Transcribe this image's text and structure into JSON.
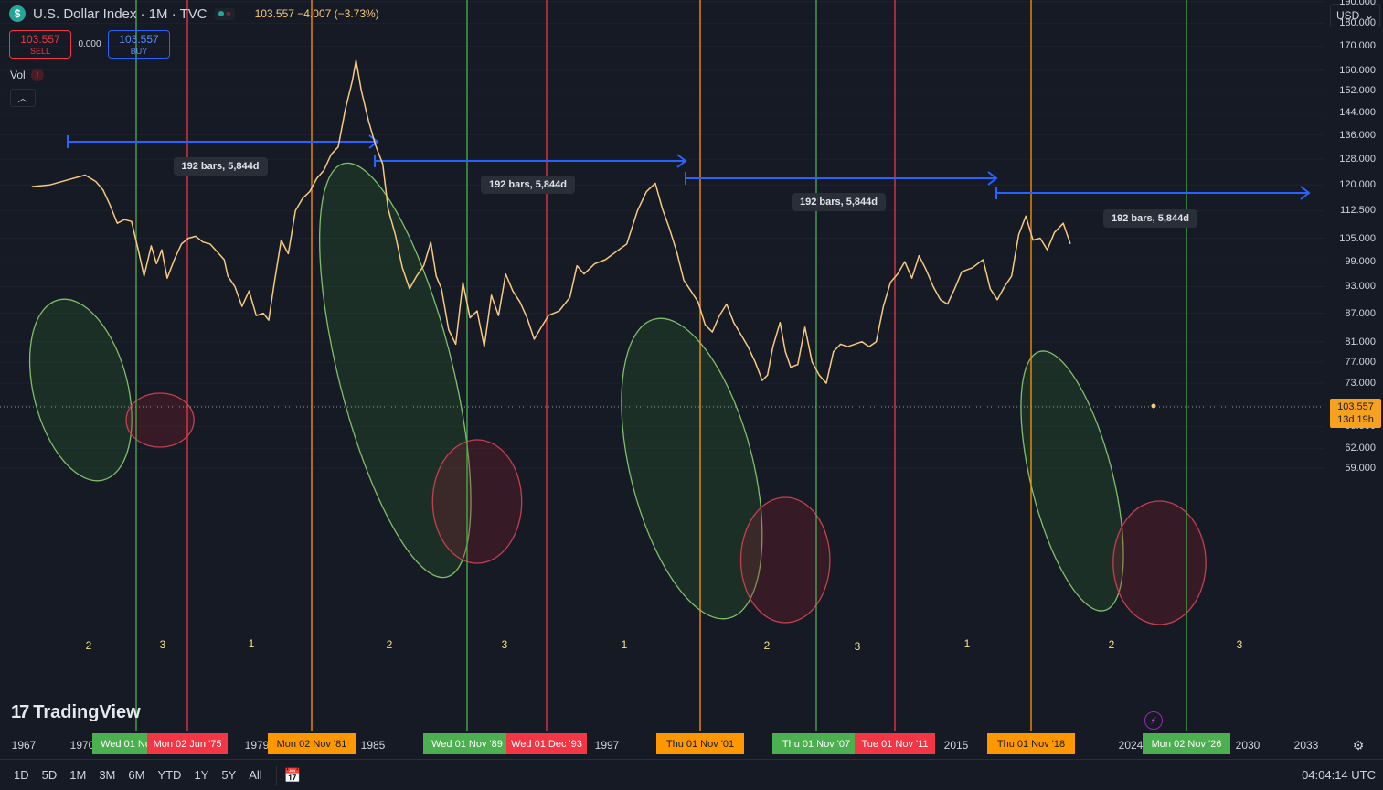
{
  "header": {
    "symbol_icon": "dollar-sign-icon",
    "title": "U.S. Dollar Index · 1M · TVC",
    "quote": "103.557  −4.007 (−3.73%)"
  },
  "trade": {
    "sell_price": "103.557",
    "sell_label": "SELL",
    "spread": "0.000",
    "buy_price": "103.557",
    "buy_label": "BUY"
  },
  "volume_label": "Vol",
  "currency": "USD",
  "last_price": {
    "value": "103.557",
    "countdown": "13d 19h"
  },
  "timeframes": [
    "1D",
    "5D",
    "1M",
    "3M",
    "6M",
    "YTD",
    "1Y",
    "5Y",
    "All"
  ],
  "clock": "04:04:14 UTC",
  "brand": "TradingView",
  "colors": {
    "background": "#161a25",
    "price_line": "#f7c97f",
    "green_line": "#4caf50",
    "red_line": "#f23645",
    "orange_line": "#ff9800",
    "measure_arrow": "#2962ff",
    "green_ellipse": "#2e7d32",
    "red_ellipse": "#8b1e2b"
  },
  "chart_data": {
    "type": "line",
    "title": "U.S. Dollar Index · 1M · TVC",
    "scale": "log",
    "ylim": [
      57,
      200
    ],
    "xlim": [
      1966,
      2035
    ],
    "y_ticks": [
      "190.000",
      "180.000",
      "170.000",
      "160.000",
      "152.000",
      "144.000",
      "136.000",
      "128.000",
      "120.000",
      "112.500",
      "105.000",
      "99.000",
      "93.000",
      "87.000",
      "81.000",
      "77.000",
      "73.000",
      "69.000",
      "65.500",
      "62.000",
      "59.000"
    ],
    "x_ticks": [
      "1967",
      "1970",
      "1979",
      "1985",
      "1997",
      "2015",
      "2024",
      "2030",
      "2033"
    ],
    "series": [
      {
        "x": [
          1967.0,
          1968.0,
          1969.0,
          1970.0,
          1970.6,
          1971.0,
          1971.4,
          1971.8,
          1972.2,
          1972.6,
          1973.0,
          1973.3,
          1973.7,
          1974.0,
          1974.3,
          1974.6,
          1975.0,
          1975.4,
          1975.8,
          1976.2,
          1976.6,
          1977.0,
          1977.4,
          1977.8,
          1978.0,
          1978.4,
          1978.8,
          1979.2,
          1979.6,
          1980.0,
          1980.3,
          1980.6,
          1981.0,
          1981.4,
          1981.8,
          1982.2,
          1982.6,
          1983.0,
          1983.4,
          1983.8,
          1984.2,
          1984.6,
          1985.0,
          1985.2,
          1985.5,
          1985.9,
          1986.3,
          1986.7,
          1987.0,
          1987.4,
          1987.8,
          1988.2,
          1988.6,
          1989.0,
          1989.4,
          1989.7,
          1990.0,
          1990.4,
          1990.8,
          1991.2,
          1991.6,
          1992.0,
          1992.4,
          1992.8,
          1993.2,
          1993.6,
          1994.0,
          1994.4,
          1994.8,
          1995.2,
          1995.6,
          1996.0,
          1996.6,
          1997.2,
          1997.6,
          1998.0,
          1998.6,
          1999.2,
          1999.8,
          2000.4,
          2001.0,
          2001.5,
          2002.0,
          2002.4,
          2002.8,
          2003.2,
          2003.6,
          2004.0,
          2004.4,
          2004.8,
          2005.2,
          2005.6,
          2006.0,
          2006.4,
          2006.8,
          2007.2,
          2007.6,
          2008.0,
          2008.3,
          2008.6,
          2009.0,
          2009.3,
          2009.6,
          2010.0,
          2010.4,
          2010.8,
          2011.2,
          2011.6,
          2012.0,
          2012.4,
          2012.8,
          2013.2,
          2013.6,
          2014.0,
          2014.4,
          2014.8,
          2015.2,
          2015.6,
          2016.0,
          2016.4,
          2016.8,
          2017.2,
          2017.6,
          2018.0,
          2018.4,
          2018.8,
          2019.2,
          2019.8,
          2020.4,
          2020.8,
          2021.2,
          2021.6,
          2022.0,
          2022.4,
          2022.8,
          2023.2,
          2023.6,
          2024.0,
          2024.4,
          2024.9,
          2025.3
        ],
        "values": [
          119.5,
          120.0,
          121.5,
          123.0,
          121.0,
          118.5,
          114.0,
          109.0,
          110.0,
          109.5,
          101.5,
          95.5,
          103.0,
          98.5,
          102.0,
          95.0,
          99.5,
          103.5,
          105.0,
          105.5,
          104.0,
          103.5,
          101.5,
          99.5,
          95.5,
          93.0,
          88.5,
          92.0,
          86.5,
          87.0,
          85.5,
          93.5,
          104.5,
          101.0,
          112.5,
          116.0,
          118.0,
          122.0,
          124.5,
          129.5,
          132.0,
          145.0,
          156.0,
          164.0,
          152.0,
          141.0,
          132.5,
          126.5,
          113.0,
          106.0,
          97.5,
          92.5,
          95.5,
          98.0,
          104.0,
          95.5,
          92.5,
          83.5,
          80.5,
          94.0,
          86.0,
          87.5,
          80.0,
          91.0,
          86.5,
          96.0,
          92.0,
          89.5,
          86.0,
          81.5,
          84.0,
          86.5,
          87.5,
          90.5,
          98.0,
          96.0,
          98.5,
          99.5,
          101.5,
          103.5,
          112.5,
          118.0,
          120.5,
          113.0,
          107.5,
          101.5,
          94.5,
          92.0,
          89.5,
          84.5,
          83.0,
          86.5,
          89.0,
          85.0,
          82.5,
          80.0,
          77.0,
          73.5,
          74.5,
          80.0,
          85.0,
          79.0,
          76.0,
          76.5,
          84.0,
          77.0,
          74.5,
          73.0,
          79.0,
          80.5,
          80.0,
          80.5,
          81.0,
          80.0,
          81.0,
          88.5,
          94.0,
          96.0,
          99.0,
          95.0,
          100.5,
          97.0,
          93.0,
          90.0,
          89.0,
          92.5,
          96.5,
          97.5,
          99.5,
          92.5,
          90.0,
          93.0,
          95.5,
          106.0,
          111.0,
          104.5,
          105.0,
          102.0,
          106.5,
          109.0,
          103.5
        ]
      }
    ],
    "vertical_lines": [
      {
        "x": 1972.8,
        "color": "green",
        "label": "Wed 01 Nov '72"
      },
      {
        "x": 1975.4,
        "color": "red",
        "label": "Mon 02 Jun '75"
      },
      {
        "x": 1981.8,
        "color": "orange",
        "label": "Mon 02 Nov '81"
      },
      {
        "x": 1989.8,
        "color": "green",
        "label": "Wed 01 Nov '89"
      },
      {
        "x": 1993.9,
        "color": "red",
        "label": "Wed 01 Dec '93"
      },
      {
        "x": 2001.8,
        "color": "orange",
        "label": "Thu 01 Nov '01"
      },
      {
        "x": 2007.8,
        "color": "green",
        "label": "Thu 01 Nov '07"
      },
      {
        "x": 2011.8,
        "color": "red",
        "label": "Tue 01 Nov '11"
      },
      {
        "x": 2018.8,
        "color": "orange",
        "label": "Thu 01 Nov '18"
      },
      {
        "x": 2026.8,
        "color": "green",
        "label": "Mon 02 Nov '26"
      }
    ],
    "measurements": [
      {
        "label": "192 bars, 5,844d"
      },
      {
        "label": "192 bars, 5,844d"
      },
      {
        "label": "192 bars, 5,844d"
      },
      {
        "label": "192 bars, 5,844d"
      }
    ],
    "cycle_labels": [
      "2",
      "3",
      "1",
      "2",
      "3",
      "1",
      "2",
      "3",
      "1",
      "2",
      "3"
    ],
    "annotations": [
      {
        "shape": "ellipse",
        "color": "green",
        "from": 1967.1,
        "to": 1972.4
      },
      {
        "shape": "ellipse",
        "color": "red",
        "from": 1972.3,
        "to": 1976.1
      },
      {
        "shape": "ellipse",
        "color": "green",
        "from": 1984.2,
        "to": 1990.6
      },
      {
        "shape": "ellipse",
        "color": "red",
        "from": 1989.5,
        "to": 1994.5
      },
      {
        "shape": "ellipse",
        "color": "green",
        "from": 2000.6,
        "to": 2007.5
      },
      {
        "shape": "ellipse",
        "color": "red",
        "from": 2006.8,
        "to": 2011.8
      },
      {
        "shape": "ellipse",
        "color": "green",
        "from": 2023.1,
        "to": 2027.7
      },
      {
        "shape": "ellipse",
        "color": "red",
        "from": 2027.7,
        "to": 2032.9
      }
    ]
  }
}
